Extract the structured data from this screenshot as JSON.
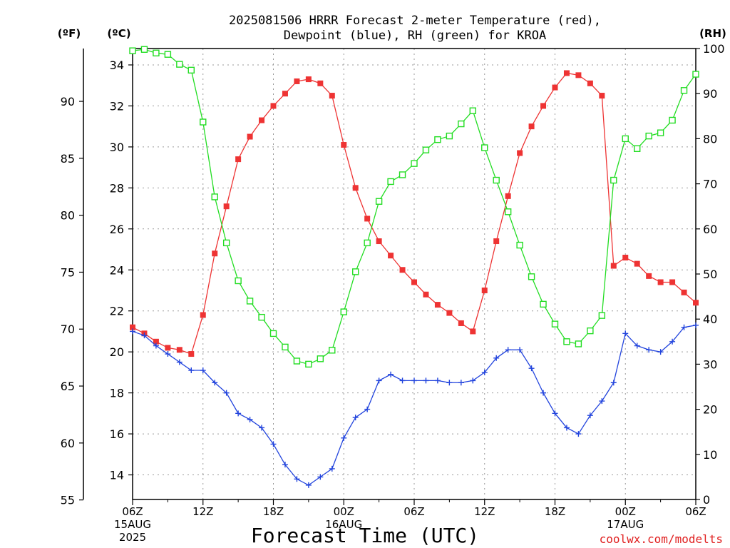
{
  "title_line1": "2025081506 HRRR Forecast 2-meter Temperature (red),",
  "title_line2": "Dewpoint (blue), RH (green) for KROA",
  "unit_f": "(ºF)",
  "unit_c": "(ºC)",
  "unit_rh": "(RH)",
  "xlabel": "Forecast Time (UTC)",
  "watermark": "coolwx.com/modelts",
  "date_labels": [
    {
      "text": "15AUG",
      "hour": 0
    },
    {
      "text": "2025",
      "hour": 0
    },
    {
      "text": "16AUG",
      "hour": 18
    },
    {
      "text": "17AUG",
      "hour": 42
    }
  ],
  "chart_data": {
    "type": "line",
    "x_hours_from_start": [
      0,
      1,
      2,
      3,
      4,
      5,
      6,
      7,
      8,
      9,
      10,
      11,
      12,
      13,
      14,
      15,
      16,
      17,
      18,
      19,
      20,
      21,
      22,
      23,
      24,
      25,
      26,
      27,
      28,
      29,
      30,
      31,
      32,
      33,
      34,
      35,
      36,
      37,
      38,
      39,
      40,
      41,
      42,
      43,
      44,
      45,
      46,
      47,
      48
    ],
    "x_start": "2025-08-15 06Z",
    "x_ticks": [
      {
        "hour": 0,
        "label": "06Z"
      },
      {
        "hour": 6,
        "label": "12Z"
      },
      {
        "hour": 12,
        "label": "18Z"
      },
      {
        "hour": 18,
        "label": "00Z"
      },
      {
        "hour": 24,
        "label": "06Z"
      },
      {
        "hour": 30,
        "label": "12Z"
      },
      {
        "hour": 36,
        "label": "18Z"
      },
      {
        "hour": 42,
        "label": "00Z"
      },
      {
        "hour": 48,
        "label": "06Z"
      }
    ],
    "x_range": [
      0,
      48
    ],
    "y_left_c": {
      "range": [
        12.8,
        34.8
      ],
      "ticks": [
        14,
        16,
        18,
        20,
        22,
        24,
        26,
        28,
        30,
        32,
        34
      ]
    },
    "y_left_f": {
      "ticks": [
        55,
        60,
        65,
        70,
        75,
        80,
        85,
        90
      ]
    },
    "y_right_rh": {
      "range": [
        0,
        100
      ],
      "ticks": [
        0,
        10,
        20,
        30,
        40,
        50,
        60,
        70,
        80,
        90,
        100
      ]
    },
    "grid": true,
    "series": [
      {
        "name": "Temperature",
        "axis": "c",
        "color": "#ee3333",
        "marker": "filled-square",
        "values": [
          21.2,
          20.9,
          20.5,
          20.2,
          20.1,
          19.9,
          21.8,
          24.8,
          27.1,
          29.4,
          30.5,
          31.3,
          32.0,
          32.6,
          33.2,
          33.3,
          33.1,
          32.5,
          30.1,
          28.0,
          26.5,
          25.4,
          24.7,
          24.0,
          23.4,
          22.8,
          22.3,
          21.9,
          21.4,
          21.0,
          23.0,
          25.4,
          27.6,
          29.7,
          31.0,
          32.0,
          32.9,
          33.6,
          33.5,
          33.1,
          32.5,
          24.2,
          24.6,
          24.3,
          23.7,
          23.4,
          23.4,
          22.9,
          22.4
        ]
      },
      {
        "name": "Dewpoint",
        "axis": "c",
        "color": "#2244dd",
        "marker": "plus",
        "values": [
          21.0,
          20.8,
          20.3,
          19.9,
          19.5,
          19.1,
          19.1,
          18.5,
          18.0,
          17.0,
          16.7,
          16.3,
          15.5,
          14.5,
          13.8,
          13.5,
          13.9,
          14.3,
          15.8,
          16.8,
          17.2,
          18.6,
          18.9,
          18.6,
          18.6,
          18.6,
          18.6,
          18.5,
          18.5,
          18.6,
          19.0,
          19.7,
          20.1,
          20.1,
          19.2,
          18.0,
          17.0,
          16.3,
          16.0,
          16.9,
          17.6,
          18.5,
          20.9,
          20.3,
          20.1,
          20.0,
          20.5,
          21.2,
          21.3
        ]
      },
      {
        "name": "RH",
        "axis": "rh",
        "color": "#22dd22",
        "marker": "open-square",
        "values": [
          99.5,
          99.8,
          99.0,
          98.7,
          96.5,
          95.2,
          83.7,
          67.1,
          56.9,
          48.5,
          44.0,
          40.4,
          36.8,
          33.8,
          30.7,
          30.0,
          31.2,
          33.1,
          41.6,
          50.5,
          56.9,
          66.1,
          70.5,
          72.0,
          74.5,
          77.5,
          79.8,
          80.6,
          83.3,
          86.2,
          78.0,
          70.8,
          63.8,
          56.4,
          49.4,
          43.3,
          38.9,
          35.0,
          34.5,
          37.4,
          40.8,
          70.8,
          80.0,
          77.8,
          80.6,
          81.3,
          84.1,
          90.7,
          94.3
        ]
      }
    ]
  }
}
